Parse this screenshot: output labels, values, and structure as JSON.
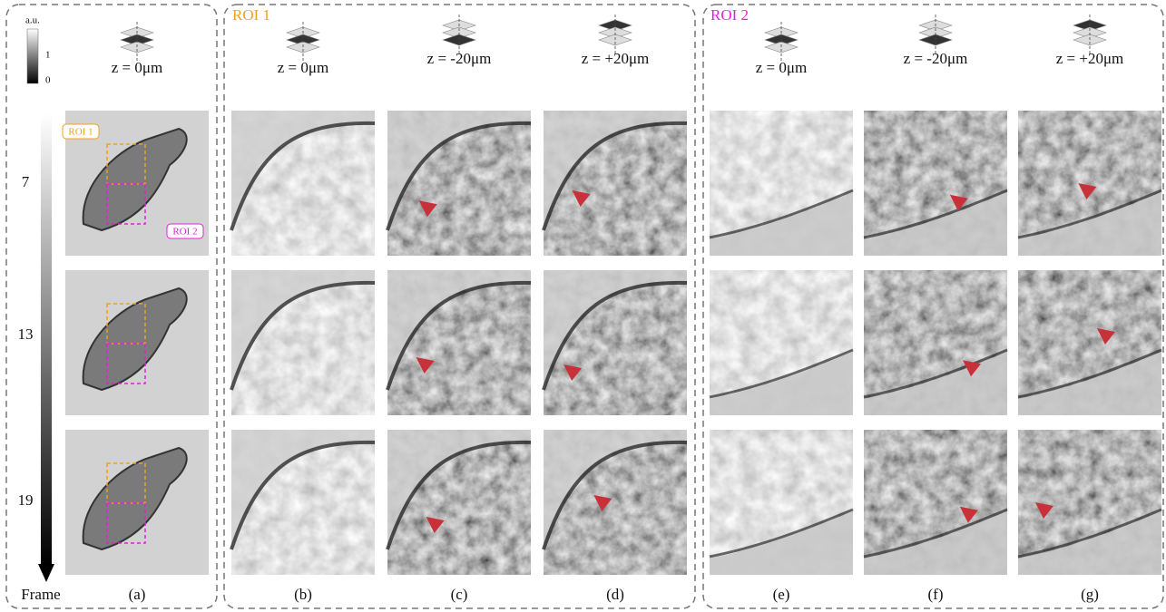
{
  "colorbar": {
    "title": "a.u.",
    "max": "1",
    "min": "0"
  },
  "frame_axis": {
    "ticks": [
      "7",
      "13",
      "19"
    ],
    "label": "Frame"
  },
  "overview": {
    "header": "z = 0μm",
    "label": "(a)",
    "callouts": [
      "ROI 1",
      "ROI 2"
    ]
  },
  "roi_groups": [
    {
      "title": "ROI 1",
      "columns": [
        {
          "header": "z = 0μm",
          "label": "(b)"
        },
        {
          "header": "z = -20μm",
          "label": "(c)"
        },
        {
          "header": "z = +20μm",
          "label": "(d)"
        }
      ]
    },
    {
      "title": "ROI 2",
      "columns": [
        {
          "header": "z = 0μm",
          "label": "(e)"
        },
        {
          "header": "z = -20μm",
          "label": "(f)"
        },
        {
          "header": "z = +20μm",
          "label": "(g)"
        }
      ]
    }
  ]
}
